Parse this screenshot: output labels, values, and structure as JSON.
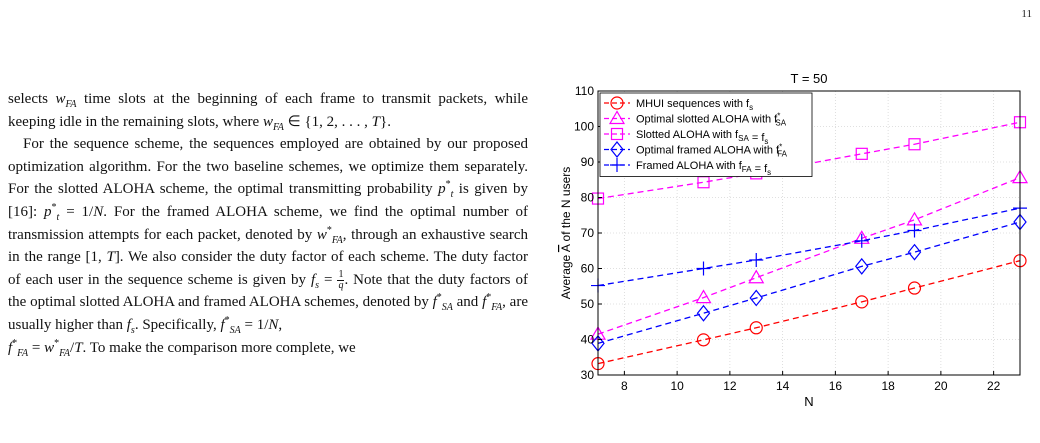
{
  "page_number": "11",
  "text": {
    "p1": {
      "a": "selects ",
      "w": "w",
      "w_sub": "FA",
      "b": " time slots at the beginning of each frame to transmit packets, while keeping idle in the remaining slots, where ",
      "w2": "w",
      "w2_sub": "FA",
      "c": " ∈ {1, 2, . . . , ",
      "T": "T",
      "d": "}."
    },
    "p2": {
      "a": "For the sequence scheme, the sequences employed are obtained by our proposed optimization algorithm. For the two baseline schemes, we optimize them separately. For the slotted ALOHA scheme, the optimal transmitting probability ",
      "pt": "p",
      "pt_sup": "*",
      "pt_sub": "t",
      "b": " is given by [16]: ",
      "pt2": "p",
      "pt2_sup": "*",
      "pt2_sub": "t",
      "c": " = 1/",
      "N": "N",
      "d": ". For the framed ALOHA scheme, we find the optimal number of transmission attempts for each packet, denoted by ",
      "wfa": "w",
      "wfa_sup": "*",
      "wfa_sub": "FA",
      "e": ", through an exhaustive search in the range [1, ",
      "T2": "T",
      "f": "]. We also consider the duty factor of each scheme. The duty factor of each user in the sequence scheme is given by ",
      "fs": "f",
      "fs_sub": "s",
      "g": " = ",
      "frac_num": "1",
      "frac_den": "q",
      "h": ". Note that the duty factors of the optimal slotted ALOHA and framed ALOHA schemes, denoted by ",
      "fsa": "f",
      "fsa_sup": "*",
      "fsa_sub": "SA",
      "i": " and ",
      "ffa": "f",
      "ffa_sup": "*",
      "ffa_sub": "FA",
      "j": ", are usually higher than ",
      "fs2": "f",
      "fs2_sub": "s",
      "k": ". Specifically, ",
      "fsa2": "f",
      "fsa2_sup": "*",
      "fsa2_sub": "SA",
      "l": " = 1/",
      "N2": "N",
      "m": ",",
      "ffa2": "f",
      "ffa2_sup": "*",
      "ffa2_sub": "FA",
      "n": " = ",
      "wfa2": "w",
      "wfa2_sup": "*",
      "wfa2_sub": "FA",
      "o": "/",
      "T3": "T",
      "p": ". To make the comparison more complete, we"
    }
  },
  "chart_data": {
    "type": "line",
    "title": "T = 50",
    "xlabel": "N",
    "ylabel_a": "Average ",
    "ylabel_abar": "A",
    "ylabel_b": " of the N users",
    "xlim": [
      7,
      23
    ],
    "ylim": [
      30,
      110
    ],
    "xticks": [
      8,
      10,
      12,
      14,
      16,
      18,
      20,
      22
    ],
    "yticks": [
      30,
      40,
      50,
      60,
      70,
      80,
      90,
      100,
      110
    ],
    "grid": true,
    "legend_position": "top-left",
    "series": [
      {
        "name": "MHUI sequences with f",
        "name_sub": "s",
        "color": "#ff0000",
        "marker": "circle",
        "x": [
          7,
          11,
          13,
          17,
          19,
          23
        ],
        "y": [
          33.2,
          39.9,
          43.3,
          50.6,
          54.5,
          62.2
        ]
      },
      {
        "name": "Optimal slotted ALOHA with f",
        "name_sup": "*",
        "name_sub": "SA",
        "color": "#ff00ff",
        "marker": "triangle",
        "x": [
          7,
          11,
          13,
          17,
          19,
          23
        ],
        "y": [
          41.5,
          51.8,
          57.4,
          68.5,
          73.7,
          85.6
        ]
      },
      {
        "name": "Slotted ALOHA with f",
        "name_sub": "SA",
        "name_tail": " = f",
        "name_sub2": "s",
        "color": "#ff00ff",
        "marker": "square",
        "x": [
          7,
          11,
          13,
          17,
          19,
          23
        ],
        "y": [
          79.7,
          84.3,
          86.8,
          92.3,
          95.0,
          101.2
        ]
      },
      {
        "name": "Optimal framed ALOHA with f",
        "name_sup": "*",
        "name_sub": "FA",
        "color": "#0000ff",
        "marker": "diamond",
        "x": [
          7,
          11,
          13,
          17,
          19,
          23
        ],
        "y": [
          38.9,
          47.4,
          51.7,
          60.6,
          64.6,
          73.1
        ]
      },
      {
        "name": "Framed ALOHA with f",
        "name_sub": "FA",
        "name_tail": " = f",
        "name_sub2": "s",
        "color": "#0000ff",
        "marker": "plus",
        "x": [
          7,
          11,
          13,
          17,
          19,
          23
        ],
        "y": [
          55.2,
          60.0,
          62.4,
          67.8,
          70.7,
          77.0
        ]
      }
    ]
  }
}
